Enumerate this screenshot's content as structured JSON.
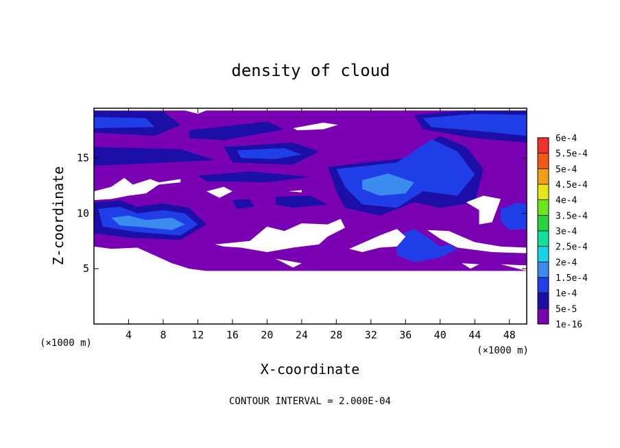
{
  "chart_data": {
    "type": "heatmap",
    "title": "density of cloud",
    "xlabel": "X-coordinate",
    "ylabel": "Z-coordinate",
    "x_multiplier": "(×1000 m)",
    "y_multiplier": "(×1000 m)",
    "xlim": [
      0,
      50
    ],
    "ylim": [
      0,
      19.5
    ],
    "x_ticks": [
      4,
      8,
      12,
      16,
      20,
      24,
      28,
      32,
      36,
      40,
      44,
      48
    ],
    "x_tick_labels": [
      "4",
      "8",
      "12",
      "16",
      "20",
      "24",
      "28",
      "32",
      "36",
      "40",
      "44",
      "48"
    ],
    "y_ticks": [
      5,
      10,
      15
    ],
    "y_tick_labels": [
      "5",
      "10",
      "15"
    ],
    "note": "CONTOUR INTERVAL = 2.000E-04",
    "colorbar": {
      "labels": [
        "1e-16",
        "5e-5",
        "1e-4",
        "1.5e-4",
        "2e-4",
        "2.5e-4",
        "3e-4",
        "3.5e-4",
        "4e-4",
        "4.5e-4",
        "5e-4",
        "5.5e-4",
        "6e-4"
      ],
      "colors": [
        "#7a00b4",
        "#1c0fa8",
        "#1f3ee8",
        "#3c8cf0",
        "#19d2e6",
        "#0fe0a0",
        "#28d23c",
        "#6ee61e",
        "#e6e614",
        "#f0a014",
        "#f05a14",
        "#f03228",
        "#f07878"
      ]
    },
    "field": {
      "base_value": "1e-16",
      "cloud_base_z": 4.8,
      "cloud_top_z": 19.3,
      "regions": [
        {
          "level": "5e-5",
          "points": [
            [
              0,
              19.3
            ],
            [
              8,
              19.2
            ],
            [
              10,
              18.0
            ],
            [
              7,
              17.0
            ],
            [
              0,
              17.3
            ]
          ]
        },
        {
          "level": "1e-4",
          "points": [
            [
              0,
              18.7
            ],
            [
              6,
              18.6
            ],
            [
              7,
              17.8
            ],
            [
              0,
              17.7
            ]
          ]
        },
        {
          "level": "5e-5",
          "points": [
            [
              11,
              17.5
            ],
            [
              20,
              18.3
            ],
            [
              22,
              17.6
            ],
            [
              15,
              16.6
            ],
            [
              11,
              16.8
            ]
          ]
        },
        {
          "level": "5e-5",
          "points": [
            [
              0,
              16.0
            ],
            [
              10,
              15.8
            ],
            [
              14,
              14.8
            ],
            [
              0,
              14.3
            ]
          ]
        },
        {
          "level": "5e-5",
          "points": [
            [
              15,
              16.0
            ],
            [
              23,
              16.4
            ],
            [
              26,
              15.6
            ],
            [
              23,
              14.4
            ],
            [
              16,
              14.6
            ]
          ]
        },
        {
          "level": "1e-4",
          "points": [
            [
              16.5,
              15.7
            ],
            [
              22,
              15.9
            ],
            [
              24,
              15.3
            ],
            [
              21,
              14.9
            ],
            [
              17,
              15.0
            ]
          ]
        },
        {
          "level": "5e-5",
          "points": [
            [
              37,
              18.9
            ],
            [
              43,
              19.3
            ],
            [
              50,
              19.3
            ],
            [
              50,
              16.4
            ],
            [
              44,
              16.8
            ],
            [
              38,
              17.6
            ]
          ]
        },
        {
          "level": "1e-4",
          "points": [
            [
              38,
              18.6
            ],
            [
              44,
              19.0
            ],
            [
              50,
              18.9
            ],
            [
              50,
              17.0
            ],
            [
              45,
              17.4
            ],
            [
              39,
              17.8
            ]
          ]
        },
        {
          "level": "5e-5",
          "points": [
            [
              27,
              14.2
            ],
            [
              36,
              15.0
            ],
            [
              40,
              17.0
            ],
            [
              43,
              16.0
            ],
            [
              45,
              14.0
            ],
            [
              44,
              11.0
            ],
            [
              40,
              10.5
            ],
            [
              37,
              11.0
            ],
            [
              33,
              9.8
            ],
            [
              29,
              10.5
            ],
            [
              28,
              12.0
            ]
          ]
        },
        {
          "level": "1e-4",
          "points": [
            [
              28,
              14.0
            ],
            [
              35,
              14.6
            ],
            [
              39,
              16.7
            ],
            [
              42,
              15.6
            ],
            [
              44,
              13.5
            ],
            [
              42,
              11.6
            ],
            [
              38,
              12.0
            ],
            [
              35,
              10.5
            ],
            [
              31,
              10.8
            ],
            [
              29,
              12.4
            ]
          ]
        },
        {
          "level": "1.5e-4",
          "points": [
            [
              31,
              13.0
            ],
            [
              34,
              13.6
            ],
            [
              37,
              12.8
            ],
            [
              36,
              11.8
            ],
            [
              33,
              11.6
            ],
            [
              31,
              12.2
            ]
          ]
        },
        {
          "level": "5e-5",
          "points": [
            [
              0,
              11.0
            ],
            [
              3,
              11.2
            ],
            [
              5,
              10.6
            ],
            [
              8,
              10.9
            ],
            [
              11,
              10.5
            ],
            [
              13,
              9.0
            ],
            [
              10,
              7.6
            ],
            [
              4,
              7.8
            ],
            [
              0,
              8.2
            ]
          ]
        },
        {
          "level": "1e-4",
          "points": [
            [
              0.5,
              10.4
            ],
            [
              3,
              10.6
            ],
            [
              5,
              10.0
            ],
            [
              8,
              10.3
            ],
            [
              10.5,
              10.0
            ],
            [
              12,
              9.0
            ],
            [
              10,
              8.0
            ],
            [
              5,
              8.3
            ],
            [
              1,
              8.8
            ]
          ]
        },
        {
          "level": "1.5e-4",
          "points": [
            [
              2,
              9.6
            ],
            [
              4,
              9.8
            ],
            [
              6,
              9.4
            ],
            [
              9,
              9.6
            ],
            [
              10.5,
              9.0
            ],
            [
              9,
              8.5
            ],
            [
              5,
              8.8
            ],
            [
              3,
              8.9
            ]
          ]
        },
        {
          "level": "1e-4",
          "points": [
            [
              35,
              8.0
            ],
            [
              37,
              8.6
            ],
            [
              39,
              7.6
            ],
            [
              40,
              7.0
            ],
            [
              41,
              7.2
            ],
            [
              42,
              6.8
            ],
            [
              40,
              6.0
            ],
            [
              37,
              5.6
            ],
            [
              35,
              6.2
            ]
          ]
        },
        {
          "level": "1e-4",
          "points": [
            [
              47,
              10.4
            ],
            [
              49,
              11.0
            ],
            [
              50,
              10.8
            ],
            [
              50,
              8.6
            ],
            [
              48,
              8.5
            ],
            [
              47,
              9.3
            ]
          ]
        },
        {
          "level": "5e-5",
          "points": [
            [
              16,
              11.2
            ],
            [
              18,
              11.3
            ],
            [
              18.5,
              10.6
            ],
            [
              16.5,
              10.4
            ]
          ]
        },
        {
          "level": "5e-5",
          "points": [
            [
              21,
              11.5
            ],
            [
              25,
              11.6
            ],
            [
              27,
              10.8
            ],
            [
              23,
              10.5
            ],
            [
              21,
              10.8
            ]
          ]
        },
        {
          "level": "5e-5",
          "points": [
            [
              12,
              13.4
            ],
            [
              18,
              13.8
            ],
            [
              25,
              13.3
            ],
            [
              20,
              12.8
            ],
            [
              13,
              12.9
            ]
          ]
        }
      ],
      "clear_areas": [
        {
          "points": [
            [
              0,
              4.8
            ],
            [
              50,
              4.8
            ],
            [
              50,
              0
            ],
            [
              0,
              0
            ]
          ]
        },
        {
          "points": [
            [
              0,
              19.5
            ],
            [
              50,
              19.5
            ],
            [
              50,
              19.3
            ],
            [
              0,
              19.3
            ]
          ]
        },
        {
          "points": [
            [
              10.5,
              19.3
            ],
            [
              12,
              19.0
            ],
            [
              13,
              19.3
            ]
          ]
        },
        {
          "points": [
            [
              23,
              17.7
            ],
            [
              26.5,
              18.2
            ],
            [
              28.2,
              18.0
            ],
            [
              26.5,
              17.6
            ],
            [
              23.5,
              17.5
            ]
          ]
        },
        {
          "points": [
            [
              0,
              12.0
            ],
            [
              2,
              12.4
            ],
            [
              3.5,
              13.2
            ],
            [
              4.5,
              12.6
            ],
            [
              6.5,
              13.1
            ],
            [
              7.5,
              12.8
            ],
            [
              10,
              13.1
            ],
            [
              10,
              12.8
            ],
            [
              7.5,
              12.6
            ],
            [
              6,
              11.8
            ],
            [
              4,
              11.6
            ],
            [
              2,
              11.3
            ],
            [
              0,
              11.2
            ]
          ]
        },
        {
          "points": [
            [
              13,
              12.0
            ],
            [
              15,
              12.4
            ],
            [
              16,
              12.0
            ],
            [
              14.5,
              11.4
            ]
          ]
        },
        {
          "points": [
            [
              22.5,
              12.0
            ],
            [
              24,
              12.1
            ],
            [
              24,
              11.9
            ]
          ]
        },
        {
          "points": [
            [
              43,
              11.0
            ],
            [
              45,
              11.6
            ],
            [
              47,
              11.3
            ],
            [
              46,
              9.2
            ],
            [
              44.5,
              9.0
            ],
            [
              44.5,
              10.3
            ]
          ]
        },
        {
          "points": [
            [
              0,
              7.0
            ],
            [
              2,
              6.8
            ],
            [
              5,
              6.9
            ],
            [
              7,
              6.2
            ],
            [
              9,
              5.5
            ],
            [
              11,
              5.0
            ],
            [
              13,
              4.8
            ],
            [
              0,
              4.8
            ]
          ]
        },
        {
          "points": [
            [
              14,
              7.2
            ],
            [
              18,
              7.5
            ],
            [
              20,
              8.8
            ],
            [
              22,
              8.4
            ],
            [
              24,
              9.1
            ],
            [
              27,
              9.0
            ],
            [
              28.5,
              9.5
            ],
            [
              29,
              8.7
            ],
            [
              27,
              7.9
            ],
            [
              26,
              7.2
            ],
            [
              23,
              6.9
            ],
            [
              20,
              6.5
            ],
            [
              17,
              6.9
            ],
            [
              15,
              7.0
            ]
          ]
        },
        {
          "points": [
            [
              29.5,
              6.8
            ],
            [
              33,
              8.0
            ],
            [
              35,
              8.6
            ],
            [
              36,
              7.9
            ],
            [
              35,
              7.0
            ],
            [
              33,
              6.9
            ],
            [
              31,
              6.5
            ]
          ]
        },
        {
          "points": [
            [
              38.5,
              8.5
            ],
            [
              41,
              8.4
            ],
            [
              44,
              7.4
            ],
            [
              47,
              7.0
            ],
            [
              50,
              6.9
            ],
            [
              50,
              6.4
            ],
            [
              46,
              6.5
            ],
            [
              42,
              6.9
            ],
            [
              40,
              7.7
            ]
          ]
        },
        {
          "points": [
            [
              21,
              5.9
            ],
            [
              24,
              5.5
            ],
            [
              23,
              5.1
            ]
          ]
        },
        {
          "points": [
            [
              42.5,
              5.5
            ],
            [
              44.5,
              5.4
            ],
            [
              43.5,
              5.0
            ]
          ]
        },
        {
          "points": [
            [
              47,
              5.4
            ],
            [
              50,
              5.3
            ],
            [
              50,
              4.8
            ]
          ]
        }
      ]
    }
  }
}
